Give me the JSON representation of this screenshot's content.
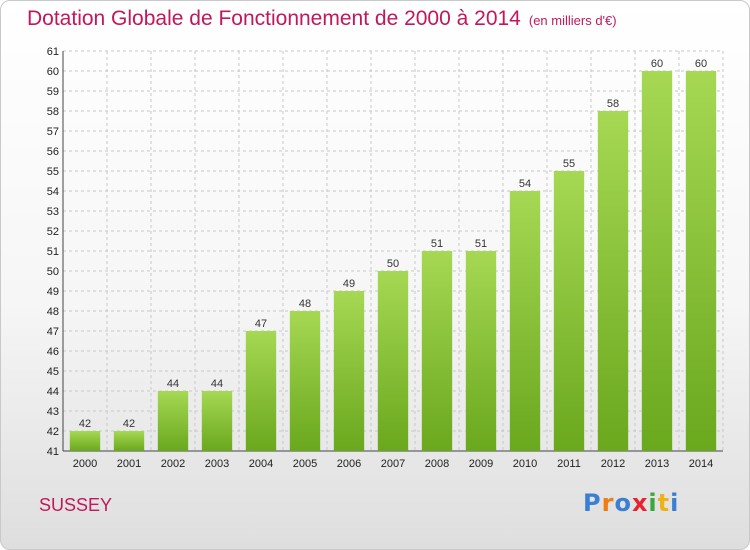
{
  "header": {
    "title": "Dotation Globale de Fonctionnement de 2000 à 2014",
    "unit": "(en milliers d'€)"
  },
  "footer": {
    "commune": "SUSSEY",
    "logo_letters": [
      "P",
      "r",
      "o",
      "x",
      "i",
      "t",
      "i"
    ],
    "logo_colors": [
      "#3a7fd1",
      "#f07c14",
      "#3a7fd1",
      "#e8232f",
      "#3aa83a",
      "#f0b114",
      "#3a7fd1"
    ]
  },
  "colors": {
    "bar_light": "#a6d853",
    "bar_dark": "#6aa81e",
    "grid": "#c8c8c8",
    "title": "#c2185b"
  },
  "chart_data": {
    "type": "bar",
    "title": "Dotation Globale de Fonctionnement de 2000 à 2014",
    "xlabel": "",
    "ylabel": "",
    "categories": [
      "2000",
      "2001",
      "2002",
      "2003",
      "2004",
      "2005",
      "2006",
      "2007",
      "2008",
      "2009",
      "2010",
      "2011",
      "2012",
      "2013",
      "2014"
    ],
    "values": [
      42,
      42,
      44,
      44,
      47,
      48,
      49,
      50,
      51,
      51,
      54,
      55,
      58,
      60,
      60
    ],
    "ylim": [
      41,
      61
    ],
    "yticks": [
      "41",
      "42",
      "43",
      "44",
      "45",
      "46",
      "47",
      "48",
      "49",
      "50",
      "51",
      "52",
      "53",
      "54",
      "55",
      "56",
      "57",
      "58",
      "59",
      "60",
      "61"
    ],
    "grid": true
  }
}
